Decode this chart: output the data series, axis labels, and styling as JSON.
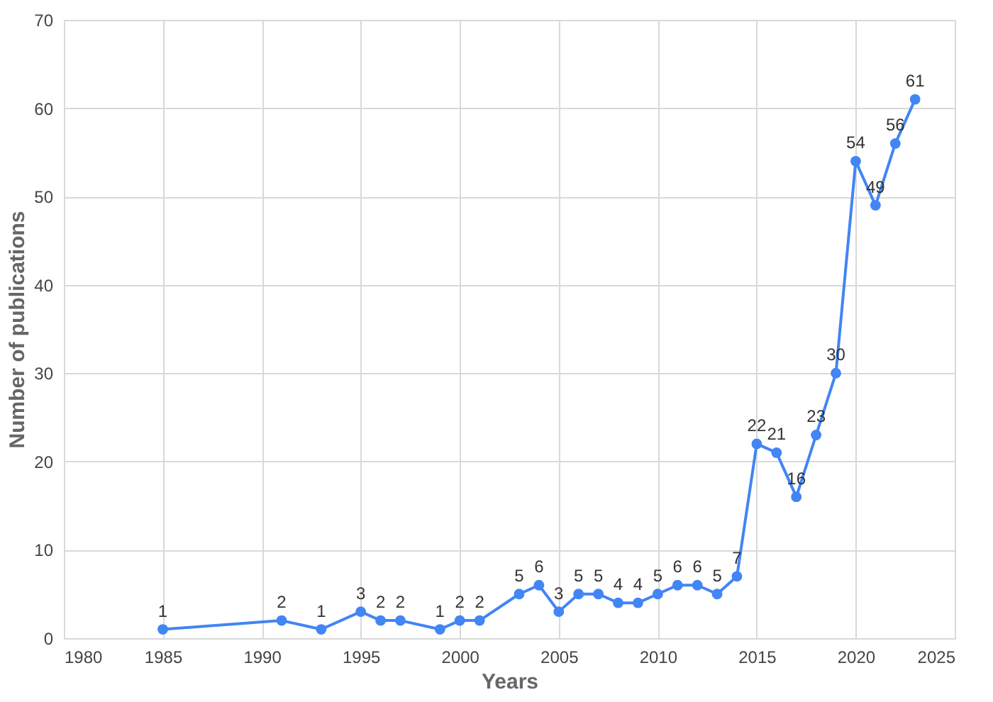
{
  "chart_data": {
    "type": "line",
    "xlabel": "Years",
    "ylabel": "Number of publications",
    "x": [
      1985,
      1991,
      1993,
      1995,
      1996,
      1997,
      1999,
      2000,
      2001,
      2003,
      2004,
      2005,
      2006,
      2007,
      2008,
      2009,
      2010,
      2011,
      2012,
      2013,
      2014,
      2015,
      2016,
      2017,
      2018,
      2019,
      2020,
      2021,
      2022,
      2023
    ],
    "series": [
      {
        "color": "#4285f4",
        "values": [
          1,
          2,
          1,
          3,
          2,
          2,
          1,
          2,
          2,
          5,
          6,
          3,
          5,
          5,
          4,
          4,
          5,
          6,
          6,
          5,
          7,
          22,
          21,
          16,
          23,
          30,
          54,
          49,
          56,
          61
        ]
      }
    ],
    "xlim": [
      1980,
      2025
    ],
    "xticks": [
      1980,
      1985,
      1990,
      1995,
      2000,
      2005,
      2010,
      2015,
      2020,
      2025
    ],
    "ylim": [
      0,
      70
    ],
    "yticks": [
      0,
      10,
      20,
      30,
      40,
      50,
      60,
      70
    ],
    "grid": true,
    "marker": "circle",
    "line_style": "solid",
    "data_labels": true,
    "legend": false
  }
}
